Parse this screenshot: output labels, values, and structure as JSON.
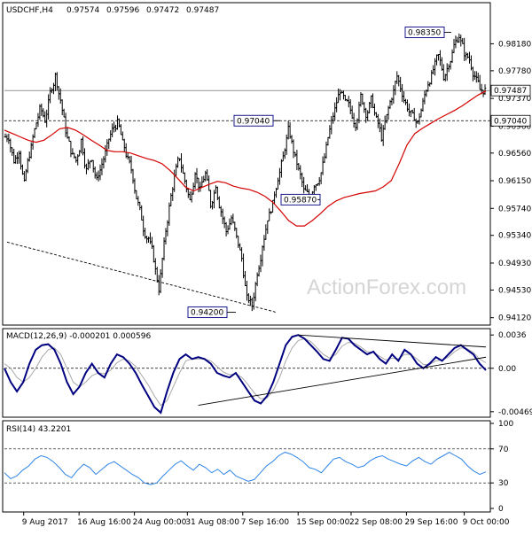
{
  "chart_data": [
    {
      "type": "candlestick",
      "title": "USDCHF,H4",
      "ohlc_values": [
        "0.97574",
        "0.97596",
        "0.97472",
        "0.97487"
      ],
      "ylim": [
        0.9405,
        0.9875
      ],
      "y_ticks": [
        {
          "value": 0.9818,
          "label": "0.98180"
        },
        {
          "value": 0.9778,
          "label": "0.97780"
        },
        {
          "value": 0.9737,
          "label": "0.97370"
        },
        {
          "value": 0.9696,
          "label": "0.96960"
        },
        {
          "value": 0.9656,
          "label": "0.96560"
        },
        {
          "value": 0.9615,
          "label": "0.96150"
        },
        {
          "value": 0.9574,
          "label": "0.95740"
        },
        {
          "value": 0.9534,
          "label": "0.95340"
        },
        {
          "value": 0.9493,
          "label": "0.94930"
        },
        {
          "value": 0.9453,
          "label": "0.94530"
        },
        {
          "value": 0.9412,
          "label": "0.94120"
        }
      ],
      "current_price": {
        "value": 0.97487,
        "label": "0.97487"
      },
      "level_line": {
        "value": 0.9704,
        "label": "0.97040"
      },
      "annotations": [
        {
          "label": "0.98350",
          "value": 0.9835
        },
        {
          "label": "0.97040",
          "value": 0.9704
        },
        {
          "label": "0.95870",
          "value": 0.9587
        },
        {
          "label": "0.94200",
          "value": 0.942
        }
      ],
      "watermark": "ActionForex.com",
      "price_path": [
        0.968,
        0.9645,
        0.966,
        0.961,
        0.9655,
        0.969,
        0.972,
        0.9705,
        0.9745,
        0.977,
        0.9735,
        0.969,
        0.966,
        0.9645,
        0.9675,
        0.963,
        0.965,
        0.9615,
        0.964,
        0.9665,
        0.969,
        0.97,
        0.967,
        0.9645,
        0.962,
        0.958,
        0.9545,
        0.953,
        0.95,
        0.9455,
        0.952,
        0.9575,
        0.962,
        0.965,
        0.9615,
        0.9585,
        0.963,
        0.96,
        0.9625,
        0.958,
        0.961,
        0.957,
        0.954,
        0.956,
        0.953,
        0.95,
        0.944,
        0.943,
        0.948,
        0.952,
        0.956,
        0.958,
        0.962,
        0.965,
        0.969,
        0.966,
        0.963,
        0.96,
        0.959,
        0.961,
        0.962,
        0.965,
        0.969,
        0.972,
        0.975,
        0.973,
        0.972,
        0.97,
        0.974,
        0.9715,
        0.9735,
        0.9705,
        0.968,
        0.971,
        0.974,
        0.977,
        0.9745,
        0.9725,
        0.971,
        0.97,
        0.973,
        0.976,
        0.978,
        0.98,
        0.977,
        0.979,
        0.9815,
        0.983,
        0.9805,
        0.9795,
        0.977,
        0.975,
        0.9749
      ],
      "ma_path": [
        0.969,
        0.9685,
        0.968,
        0.9675,
        0.9672,
        0.9675,
        0.9683,
        0.9692,
        0.9694,
        0.969,
        0.9683,
        0.9675,
        0.9668,
        0.966,
        0.9658,
        0.9658,
        0.9656,
        0.9652,
        0.9648,
        0.9645,
        0.964,
        0.963,
        0.9618,
        0.9605,
        0.96,
        0.9605,
        0.961,
        0.9614,
        0.9612,
        0.9607,
        0.9604,
        0.9602,
        0.9598,
        0.9592,
        0.9583,
        0.957,
        0.9556,
        0.9548,
        0.9548,
        0.9556,
        0.9566,
        0.9577,
        0.9585,
        0.959,
        0.9593,
        0.9596,
        0.9598,
        0.96,
        0.9606,
        0.9615,
        0.964,
        0.9668,
        0.9685,
        0.9693,
        0.97,
        0.9707,
        0.9713,
        0.9719,
        0.9726,
        0.9734,
        0.9742,
        0.9748
      ],
      "trendline": {
        "from_index": 0,
        "to_index": 52,
        "from_value": 0.9524,
        "to_value": 0.942,
        "style": "dashed"
      }
    },
    {
      "type": "line",
      "title": "MACD(12,26,9) -0.000201 0.000596",
      "ylim": [
        -0.005,
        0.004
      ],
      "y_ticks": [
        {
          "value": 0.0036,
          "label": "0.0036"
        },
        {
          "value": 0.0,
          "label": "0.00"
        },
        {
          "value": -0.004696,
          "label": "-0.004696"
        }
      ],
      "macd": [
        0.0,
        -0.0015,
        -0.0025,
        -0.0015,
        0.0005,
        0.002,
        0.0025,
        0.0026,
        0.002,
        0.0005,
        -0.0015,
        -0.0028,
        -0.002,
        -0.0005,
        0.0005,
        -0.0005,
        -0.001,
        0.0005,
        0.0015,
        0.0012,
        0.0005,
        -0.0005,
        -0.0018,
        -0.003,
        -0.0042,
        -0.0048,
        -0.0025,
        -0.0005,
        0.001,
        0.0015,
        0.001,
        0.0012,
        0.001,
        0.0005,
        -0.0005,
        -0.0008,
        -0.001,
        -0.0005,
        -0.0015,
        -0.0025,
        -0.0035,
        -0.0038,
        -0.003,
        -0.0015,
        0.0005,
        0.0025,
        0.0034,
        0.0036,
        0.0032,
        0.0025,
        0.0018,
        0.001,
        0.0008,
        0.002,
        0.0033,
        0.0032,
        0.0025,
        0.002,
        0.0015,
        0.0018,
        0.001,
        0.0005,
        0.0015,
        0.0008,
        0.002,
        0.0015,
        0.0005,
        0.0,
        0.0005,
        0.0012,
        0.0008,
        0.0015,
        0.0022,
        0.0025,
        0.002,
        0.0015,
        0.0005,
        -0.0002
      ],
      "signal": [
        0.0005,
        0.0,
        -0.001,
        -0.0015,
        -0.001,
        0.0,
        0.0012,
        0.002,
        0.0022,
        0.0015,
        0.0,
        -0.0015,
        -0.002,
        -0.0015,
        -0.0008,
        -0.0005,
        -0.0006,
        -0.0002,
        0.0006,
        0.001,
        0.0008,
        0.0002,
        -0.0008,
        -0.0018,
        -0.003,
        -0.004,
        -0.0035,
        -0.002,
        -0.0005,
        0.0008,
        0.001,
        0.001,
        0.001,
        0.0008,
        0.0002,
        -0.0004,
        -0.0007,
        -0.0006,
        -0.001,
        -0.0018,
        -0.0027,
        -0.0033,
        -0.0032,
        -0.0024,
        -0.001,
        0.0008,
        0.0022,
        0.003,
        0.0032,
        0.0029,
        0.0022,
        0.0015,
        0.0011,
        0.0015,
        0.0024,
        0.0028,
        0.0027,
        0.0023,
        0.0018,
        0.0017,
        0.0013,
        0.0009,
        0.0011,
        0.001,
        0.0015,
        0.0015,
        0.001,
        0.0004,
        0.0004,
        0.0008,
        0.0009,
        0.0012,
        0.0018,
        0.0022,
        0.0021,
        0.0017,
        0.001,
        0.0006
      ],
      "trendlines": [
        {
          "from_index": 47,
          "to_index": 77,
          "from_value": 0.0036,
          "to_value": 0.0023
        },
        {
          "from_index": 31,
          "to_index": 77,
          "from_value": -0.004,
          "to_value": 0.0012
        }
      ]
    },
    {
      "type": "line",
      "title": "RSI(14) 43.2201",
      "ylim": [
        0,
        100
      ],
      "y_ticks": [
        {
          "value": 100,
          "label": "100"
        },
        {
          "value": 70,
          "label": "70"
        },
        {
          "value": 30,
          "label": "30"
        },
        {
          "value": 0,
          "label": "0"
        }
      ],
      "levels": [
        70,
        30
      ],
      "values": [
        42,
        35,
        38,
        45,
        50,
        58,
        62,
        60,
        55,
        48,
        40,
        36,
        45,
        52,
        48,
        40,
        46,
        52,
        55,
        50,
        45,
        40,
        36,
        30,
        28,
        30,
        38,
        45,
        52,
        56,
        50,
        45,
        52,
        48,
        42,
        46,
        40,
        45,
        38,
        35,
        32,
        34,
        42,
        50,
        55,
        62,
        66,
        64,
        60,
        55,
        48,
        46,
        42,
        50,
        58,
        60,
        55,
        52,
        48,
        50,
        56,
        60,
        62,
        58,
        55,
        52,
        50,
        56,
        60,
        55,
        52,
        58,
        62,
        66,
        62,
        58,
        50,
        44,
        40,
        43
      ]
    }
  ],
  "x_axis": {
    "labels": [
      "9 Aug 2017",
      "16 Aug 16:00",
      "24 Aug 00:00",
      "31 Aug 08:00",
      "7 Sep 16:00",
      "15 Sep 00:00",
      "22 Sep 08:00",
      "29 Sep 16:00",
      "9 Oct 00:00"
    ],
    "positions": [
      0.04,
      0.155,
      0.27,
      0.38,
      0.495,
      0.61,
      0.72,
      0.835,
      0.955
    ]
  },
  "colors": {
    "ma": "#d40000",
    "macd": "#000080",
    "signal": "#a8a8a8",
    "rsi": "#2d84e6",
    "candle": "#000000"
  }
}
